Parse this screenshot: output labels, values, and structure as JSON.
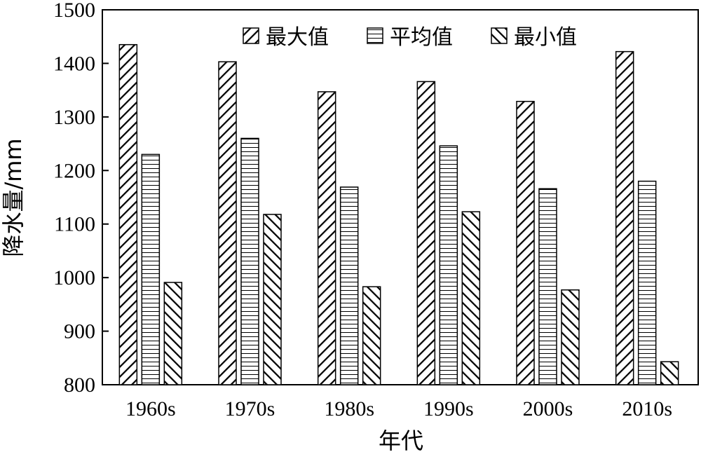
{
  "chart_data": {
    "type": "bar",
    "categories": [
      "1960s",
      "1970s",
      "1980s",
      "1990s",
      "2000s",
      "2010s"
    ],
    "series": [
      {
        "name": "最大值",
        "pattern": "diagonal",
        "values": [
          1435,
          1403,
          1347,
          1366,
          1329,
          1422
        ]
      },
      {
        "name": "平均值",
        "pattern": "horizontal",
        "values": [
          1230,
          1260,
          1169,
          1246,
          1166,
          1180
        ]
      },
      {
        "name": "最小值",
        "pattern": "backdiagonal",
        "values": [
          991,
          1118,
          983,
          1123,
          977,
          843
        ]
      }
    ],
    "xlabel": "年代",
    "ylabel": "降水量/mm",
    "ylim": [
      800,
      1500
    ],
    "yticks": [
      800,
      900,
      1000,
      1100,
      1200,
      1300,
      1400,
      1500
    ],
    "grid": false,
    "legend_position": "top"
  }
}
